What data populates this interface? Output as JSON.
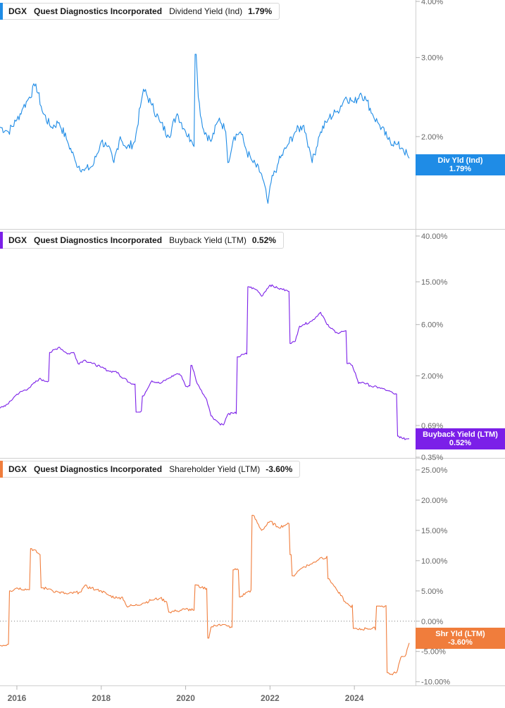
{
  "chart_data": [
    {
      "type": "line",
      "ticker": "DGX",
      "company": "Quest Diagnostics Incorporated",
      "metric": "Dividend Yield (Ind)",
      "current_value": "1.79%",
      "flag_label": "Div Yld (Ind)",
      "color": "#1f8ce6",
      "scale": "log",
      "ylim": [
        1.25,
        4.0
      ],
      "yticks": [
        {
          "value": 2.0,
          "label": "2.00%"
        },
        {
          "value": 3.0,
          "label": "3.00%"
        },
        {
          "value": 4.0,
          "label": "4.00%"
        }
      ],
      "x": [
        2015.6,
        2015.8,
        2016.0,
        2016.15,
        2016.3,
        2016.45,
        2016.6,
        2016.8,
        2017.0,
        2017.2,
        2017.4,
        2017.6,
        2017.8,
        2018.0,
        2018.15,
        2018.3,
        2018.45,
        2018.6,
        2018.8,
        2018.95,
        2019.0,
        2019.2,
        2019.4,
        2019.6,
        2019.8,
        2020.0,
        2020.15,
        2020.25,
        2020.3,
        2020.4,
        2020.6,
        2020.8,
        2020.95,
        2021.0,
        2021.15,
        2021.3,
        2021.45,
        2021.6,
        2021.8,
        2021.95,
        2022.0,
        2022.2,
        2022.4,
        2022.6,
        2022.8,
        2022.95,
        2023.0,
        2023.2,
        2023.4,
        2023.6,
        2023.8,
        2024.0,
        2024.15,
        2024.3,
        2024.45,
        2024.6,
        2024.8,
        2025.0,
        2025.15,
        2025.3
      ],
      "values": [
        2.1,
        2.05,
        2.18,
        2.32,
        2.45,
        2.62,
        2.28,
        2.1,
        2.15,
        1.95,
        1.75,
        1.68,
        1.72,
        1.95,
        1.9,
        1.75,
        2.0,
        1.88,
        1.95,
        2.4,
        2.55,
        2.35,
        2.15,
        2.0,
        2.25,
        2.05,
        1.95,
        3.05,
        2.45,
        2.1,
        1.95,
        2.2,
        2.05,
        1.75,
        2.0,
        2.05,
        1.85,
        1.75,
        1.65,
        1.42,
        1.55,
        1.75,
        1.9,
        2.05,
        2.12,
        1.85,
        1.75,
        2.05,
        2.2,
        2.28,
        2.45,
        2.38,
        2.5,
        2.4,
        2.22,
        2.12,
        1.97,
        1.92,
        1.88,
        1.79
      ]
    },
    {
      "type": "line",
      "ticker": "DGX",
      "company": "Quest Diagnostics Incorporated",
      "metric": "Buyback Yield (LTM)",
      "current_value": "0.52%",
      "flag_label": "Buyback Yield (LTM)",
      "color": "#7b1fe8",
      "scale": "log",
      "ylim": [
        0.35,
        40.0
      ],
      "yticks": [
        {
          "value": 0.35,
          "label": "0.35%"
        },
        {
          "value": 0.69,
          "label": "0.69%"
        },
        {
          "value": 2.0,
          "label": "2.00%"
        },
        {
          "value": 6.0,
          "label": "6.00%"
        },
        {
          "value": 15.0,
          "label": "15.00%"
        },
        {
          "value": 40.0,
          "label": "40.00%"
        }
      ],
      "x": [
        2015.6,
        2015.8,
        2016.0,
        2016.3,
        2016.55,
        2016.6,
        2016.8,
        2017.0,
        2017.2,
        2017.35,
        2017.45,
        2017.6,
        2017.8,
        2018.0,
        2018.2,
        2018.35,
        2018.5,
        2018.55,
        2018.7,
        2018.85,
        2019.0,
        2019.2,
        2019.4,
        2019.6,
        2019.8,
        2019.9,
        2020.0,
        2020.15,
        2020.25,
        2020.35,
        2020.5,
        2020.6,
        2020.8,
        2020.9,
        2021.0,
        2021.15,
        2021.25,
        2021.4,
        2021.5,
        2021.7,
        2021.8,
        2022.0,
        2022.2,
        2022.4,
        2022.5,
        2022.6,
        2022.7,
        2022.8,
        2023.0,
        2023.2,
        2023.35,
        2023.45,
        2023.6,
        2023.75,
        2023.85,
        2023.95,
        2024.1,
        2024.2,
        2024.4,
        2024.6,
        2024.8,
        2024.95,
        2025.05,
        2025.15,
        2025.3
      ],
      "values": [
        1.0,
        1.1,
        1.35,
        1.55,
        1.9,
        1.8,
        3.3,
        3.7,
        3.2,
        3.3,
        2.6,
        2.8,
        2.6,
        2.4,
        2.2,
        2.2,
        1.9,
        1.9,
        1.7,
        0.92,
        1.3,
        1.8,
        1.7,
        1.9,
        2.1,
        2.0,
        1.6,
        2.5,
        1.8,
        1.5,
        1.2,
        0.85,
        0.72,
        0.7,
        0.88,
        0.9,
        3.0,
        3.2,
        13.5,
        12.5,
        11.0,
        14.0,
        13.0,
        12.5,
        4.0,
        4.2,
        5.8,
        6.0,
        6.5,
        7.8,
        6.0,
        5.5,
        5.0,
        5.2,
        2.6,
        2.5,
        1.7,
        1.75,
        1.6,
        1.55,
        1.45,
        1.35,
        0.55,
        0.52,
        0.52
      ]
    },
    {
      "type": "line",
      "ticker": "DGX",
      "company": "Quest Diagnostics Incorporated",
      "metric": "Shareholder Yield (LTM)",
      "current_value": "-3.60%",
      "flag_label": "Shr Yld (LTM)",
      "color": "#f07d3c",
      "scale": "linear",
      "ylim": [
        -10.5,
        25.0
      ],
      "zero_line": true,
      "yticks": [
        {
          "value": -10,
          "label": "-10.00%"
        },
        {
          "value": -5,
          "label": "-5.00%"
        },
        {
          "value": 0,
          "label": "0.00%"
        },
        {
          "value": 5,
          "label": "5.00%"
        },
        {
          "value": 10,
          "label": "10.00%"
        },
        {
          "value": 15,
          "label": "15.00%"
        },
        {
          "value": 20,
          "label": "20.00%"
        },
        {
          "value": 25,
          "label": "25.00%"
        }
      ],
      "x": [
        2015.6,
        2015.8,
        2015.85,
        2016.0,
        2016.3,
        2016.35,
        2016.55,
        2016.6,
        2016.8,
        2016.85,
        2017.0,
        2017.2,
        2017.5,
        2017.6,
        2017.9,
        2018.0,
        2018.2,
        2018.4,
        2018.5,
        2018.6,
        2018.8,
        2019.0,
        2019.2,
        2019.4,
        2019.55,
        2019.6,
        2019.8,
        2020.0,
        2020.2,
        2020.25,
        2020.35,
        2020.55,
        2020.6,
        2020.8,
        2021.0,
        2021.1,
        2021.15,
        2021.3,
        2021.5,
        2021.6,
        2021.8,
        2022.0,
        2022.2,
        2022.4,
        2022.5,
        2022.55,
        2022.7,
        2022.8,
        2023.0,
        2023.2,
        2023.4,
        2023.5,
        2023.6,
        2023.8,
        2023.9,
        2024.0,
        2024.1,
        2024.3,
        2024.55,
        2024.6,
        2024.8,
        2024.85,
        2025.0,
        2025.1,
        2025.2,
        2025.3
      ],
      "values": [
        -4.0,
        -3.8,
        5.0,
        5.5,
        5.2,
        12.0,
        11.0,
        5.5,
        5.3,
        5.0,
        4.8,
        4.5,
        4.8,
        5.8,
        5.2,
        5.0,
        4.2,
        3.8,
        4.0,
        2.5,
        2.6,
        3.0,
        3.5,
        3.8,
        3.2,
        1.5,
        1.7,
        2.0,
        1.8,
        6.0,
        5.5,
        -2.8,
        -1.0,
        -0.5,
        -0.8,
        -1.0,
        8.5,
        4.0,
        5.0,
        17.5,
        15.0,
        16.5,
        15.5,
        16.0,
        11.0,
        7.5,
        8.5,
        9.0,
        9.5,
        10.5,
        7.0,
        6.0,
        5.0,
        3.0,
        2.5,
        -1.2,
        -1.4,
        -1.2,
        2.5,
        2.5,
        -8.5,
        -8.8,
        -8.5,
        -6.0,
        -5.8,
        -3.6
      ]
    }
  ],
  "x_axis": {
    "ticks": [
      {
        "value": 2016,
        "label": "2016"
      },
      {
        "value": 2018,
        "label": "2018"
      },
      {
        "value": 2020,
        "label": "2020"
      },
      {
        "value": 2022,
        "label": "2022"
      },
      {
        "value": 2024,
        "label": "2024"
      }
    ],
    "range": [
      2015.6,
      2025.45
    ]
  }
}
